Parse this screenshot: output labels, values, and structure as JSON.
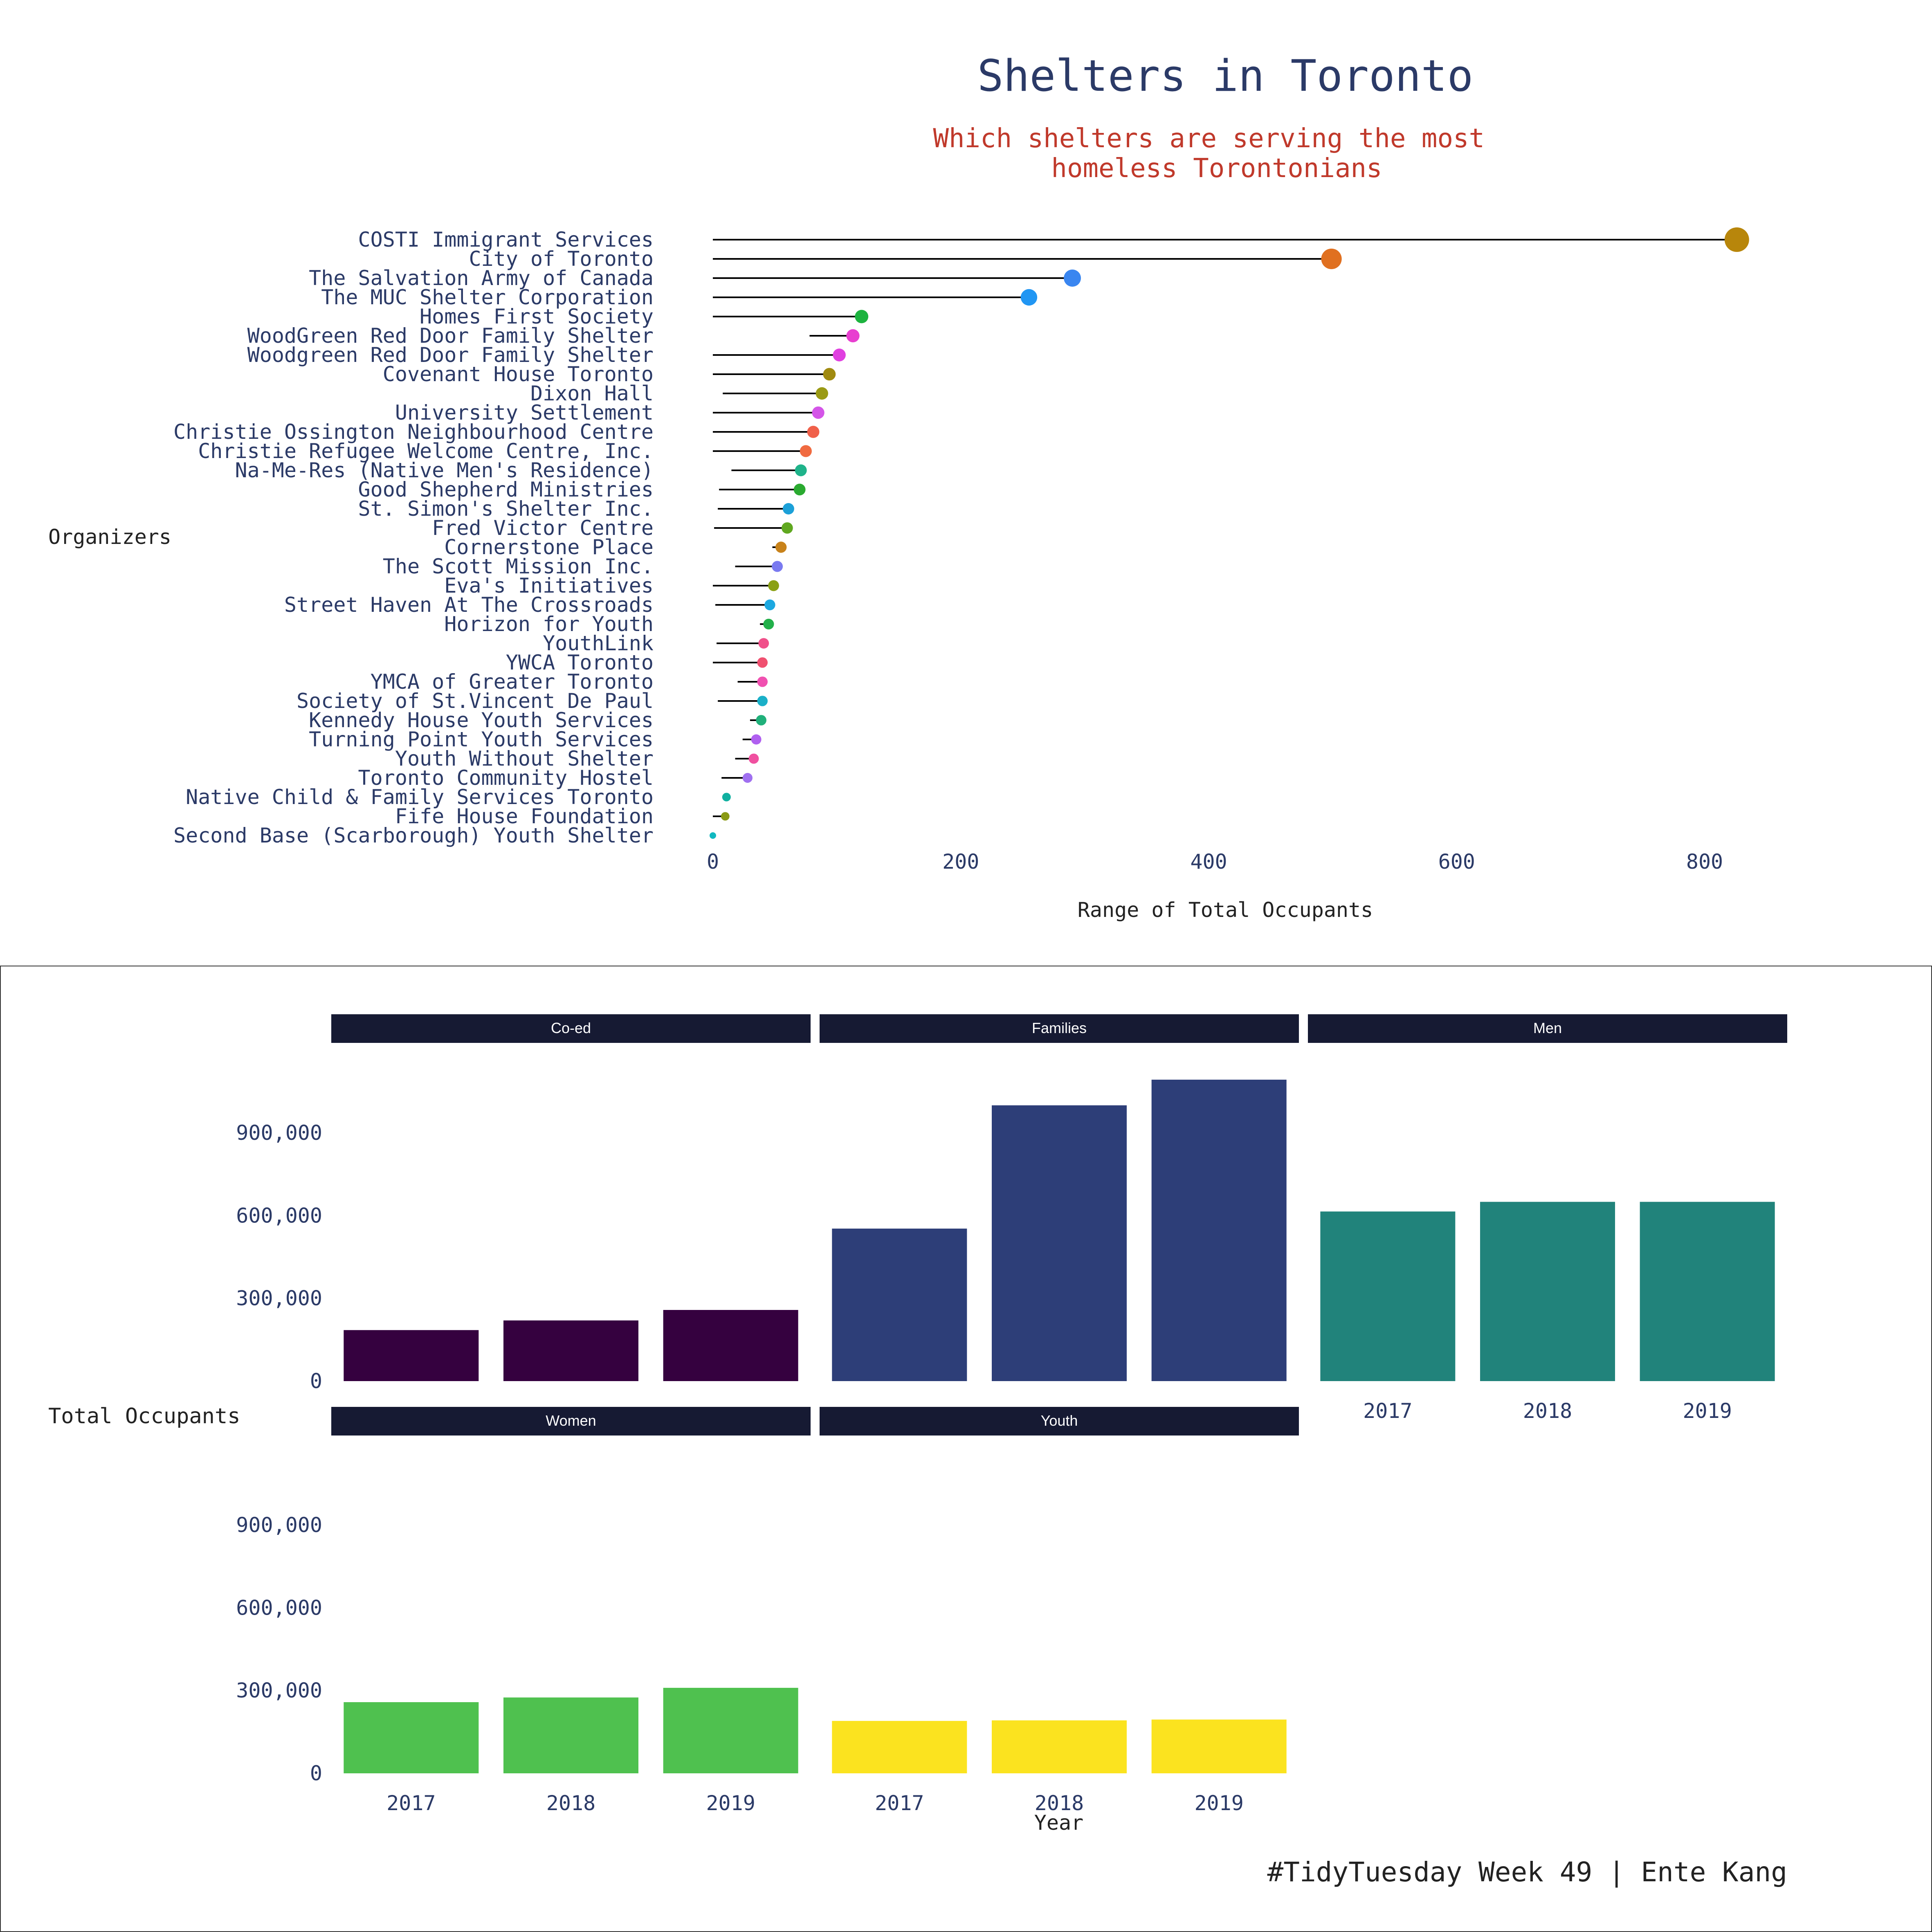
{
  "colors": {
    "text": "#2b3a67",
    "subtitle": "#c0392b",
    "strip_bg": "#161a33",
    "strip_text": "#ffffff",
    "segment": "#000000",
    "caption": "#222222"
  },
  "top": {
    "title": "Shelters in Toronto",
    "subtitle_lines": [
      "Which shelters are serving the most",
      "homeless Torontonians"
    ],
    "ylabel": "Organizers",
    "xlabel": "Range of Total Occupants"
  },
  "bottom": {
    "ylabel": "Total Occupants",
    "xlabel": "Year",
    "caption": "#TidyTuesday Week 49 | Ente Kang"
  },
  "chart_data": [
    {
      "type": "lollipop",
      "title": "Shelters in Toronto",
      "subtitle": "Which shelters are serving the most homeless Torontonians",
      "xlabel": "Range of Total Occupants",
      "ylabel": "Organizers",
      "xlim": [
        0,
        850
      ],
      "xticks": [
        0,
        200,
        400,
        600,
        800
      ],
      "grid": false,
      "legend": "none",
      "rows": [
        {
          "name": "COSTI Immigrant Services",
          "min": 0,
          "max": 826,
          "color": "#b8860b"
        },
        {
          "name": "City of Toronto",
          "min": 0,
          "max": 499,
          "color": "#e07020"
        },
        {
          "name": "The Salvation Army of Canada",
          "min": 0,
          "max": 290,
          "color": "#3a86f0"
        },
        {
          "name": "The MUC Shelter Corporation",
          "min": 0,
          "max": 255,
          "color": "#2196f3"
        },
        {
          "name": "Homes First Society",
          "min": 0,
          "max": 120,
          "color": "#1db33f"
        },
        {
          "name": "WoodGreen Red Door Family Shelter",
          "min": 78,
          "max": 113,
          "color": "#e83fd0"
        },
        {
          "name": "Woodgreen Red Door Family Shelter",
          "min": 0,
          "max": 102,
          "color": "#e040e0"
        },
        {
          "name": "Covenant House Toronto",
          "min": 0,
          "max": 94,
          "color": "#a08a10"
        },
        {
          "name": "Dixon Hall",
          "min": 8,
          "max": 88,
          "color": "#9a9a14"
        },
        {
          "name": "University Settlement",
          "min": 0,
          "max": 85,
          "color": "#d455e8"
        },
        {
          "name": "Christie Ossington Neighbourhood Centre",
          "min": 0,
          "max": 81,
          "color": "#f0604a"
        },
        {
          "name": "Christie Refugee Welcome Centre, Inc.",
          "min": 0,
          "max": 75,
          "color": "#f06a40"
        },
        {
          "name": "Na-Me-Res (Native Men's Residence)",
          "min": 15,
          "max": 71,
          "color": "#1fb38a"
        },
        {
          "name": "Good Shepherd Ministries",
          "min": 5,
          "max": 70,
          "color": "#2aaa30"
        },
        {
          "name": "St. Simon's Shelter Inc.",
          "min": 4,
          "max": 61,
          "color": "#1ca0d8"
        },
        {
          "name": "Fred Victor Centre",
          "min": 1,
          "max": 60,
          "color": "#60a820"
        },
        {
          "name": "Cornerstone Place",
          "min": 48,
          "max": 55,
          "color": "#c8821a"
        },
        {
          "name": "The Scott Mission Inc.",
          "min": 18,
          "max": 52,
          "color": "#7a7af0"
        },
        {
          "name": "Eva's Initiatives",
          "min": 0,
          "max": 49,
          "color": "#8aa014"
        },
        {
          "name": "Street Haven At The Crossroads",
          "min": 2,
          "max": 46,
          "color": "#1ca8e0"
        },
        {
          "name": "Horizon for Youth",
          "min": 38,
          "max": 45,
          "color": "#22b04a"
        },
        {
          "name": "YouthLink",
          "min": 3,
          "max": 41,
          "color": "#f0508a"
        },
        {
          "name": "YWCA Toronto",
          "min": 0,
          "max": 40,
          "color": "#f05070"
        },
        {
          "name": "YMCA of Greater Toronto",
          "min": 20,
          "max": 40,
          "color": "#f050b0"
        },
        {
          "name": "Society of St.Vincent De Paul",
          "min": 4,
          "max": 40,
          "color": "#1ab0c8"
        },
        {
          "name": "Kennedy House Youth Services",
          "min": 30,
          "max": 39,
          "color": "#20b07a"
        },
        {
          "name": "Turning Point Youth Services",
          "min": 24,
          "max": 35,
          "color": "#b060f0"
        },
        {
          "name": "Youth Without Shelter",
          "min": 18,
          "max": 33,
          "color": "#f050a0"
        },
        {
          "name": "Toronto Community Hostel",
          "min": 7,
          "max": 28,
          "color": "#a070f0"
        },
        {
          "name": "Native Child & Family Services Toronto",
          "min": 8,
          "max": 11,
          "color": "#10b0a0"
        },
        {
          "name": "Fife House Foundation",
          "min": 0,
          "max": 10,
          "color": "#8a9a14"
        },
        {
          "name": "Second Base (Scarborough) Youth Shelter",
          "min": 0,
          "max": 0,
          "color": "#10b8c0"
        }
      ]
    },
    {
      "type": "bar",
      "faceted": true,
      "xlabel": "Year",
      "ylabel": "Total Occupants",
      "categories": [
        "2017",
        "2018",
        "2019"
      ],
      "ylim": [
        0,
        1170000
      ],
      "yticks": [
        0,
        300000,
        600000,
        900000
      ],
      "ytick_labels": [
        "0",
        "300,000",
        "600,000",
        "900,000"
      ],
      "grid": false,
      "legend": "none",
      "series": [
        {
          "name": "Co-ed",
          "color": "#35013f",
          "values": [
            185000,
            220000,
            258000
          ]
        },
        {
          "name": "Families",
          "color": "#2d3e78",
          "values": [
            553000,
            1000000,
            1093000
          ]
        },
        {
          "name": "Men",
          "color": "#21837b",
          "values": [
            615000,
            650000,
            650000
          ]
        },
        {
          "name": "Women",
          "color": "#4fc14f",
          "values": [
            258000,
            275000,
            310000
          ]
        },
        {
          "name": "Youth",
          "color": "#fbe31f",
          "values": [
            190000,
            192000,
            195000
          ]
        }
      ]
    }
  ]
}
